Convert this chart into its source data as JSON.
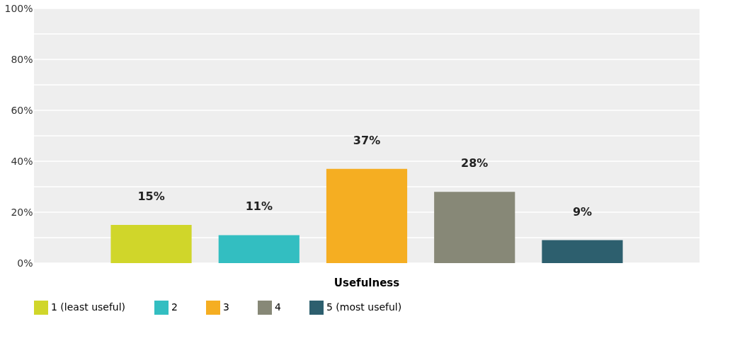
{
  "chart_data": {
    "type": "bar",
    "categories": [
      "Usefulness"
    ],
    "series": [
      {
        "name": "1 (least useful)",
        "color": "#d0d62a",
        "values": [
          15
        ],
        "value_labels": [
          "15%"
        ]
      },
      {
        "name": "2",
        "color": "#33bec1",
        "values": [
          11
        ],
        "value_labels": [
          "11%"
        ]
      },
      {
        "name": "3",
        "color": "#f5ae22",
        "values": [
          37
        ],
        "value_labels": [
          "37%"
        ]
      },
      {
        "name": "4",
        "color": "#878877",
        "values": [
          28
        ],
        "value_labels": [
          "28%"
        ]
      },
      {
        "name": "5 (most useful)",
        "color": "#2d5f6e",
        "values": [
          9
        ],
        "value_labels": [
          "9%"
        ]
      }
    ],
    "ylim": [
      0,
      100
    ],
    "yticks": [
      {
        "value": 0,
        "label": "0%"
      },
      {
        "value": 10,
        "label": null
      },
      {
        "value": 20,
        "label": "20%"
      },
      {
        "value": 30,
        "label": null
      },
      {
        "value": 40,
        "label": "40%"
      },
      {
        "value": 50,
        "label": null
      },
      {
        "value": 60,
        "label": "60%"
      },
      {
        "value": 70,
        "label": null
      },
      {
        "value": 80,
        "label": "80%"
      },
      {
        "value": 90,
        "label": null
      },
      {
        "value": 100,
        "label": "100%"
      }
    ],
    "grid": "y",
    "legend": "bottom left"
  }
}
